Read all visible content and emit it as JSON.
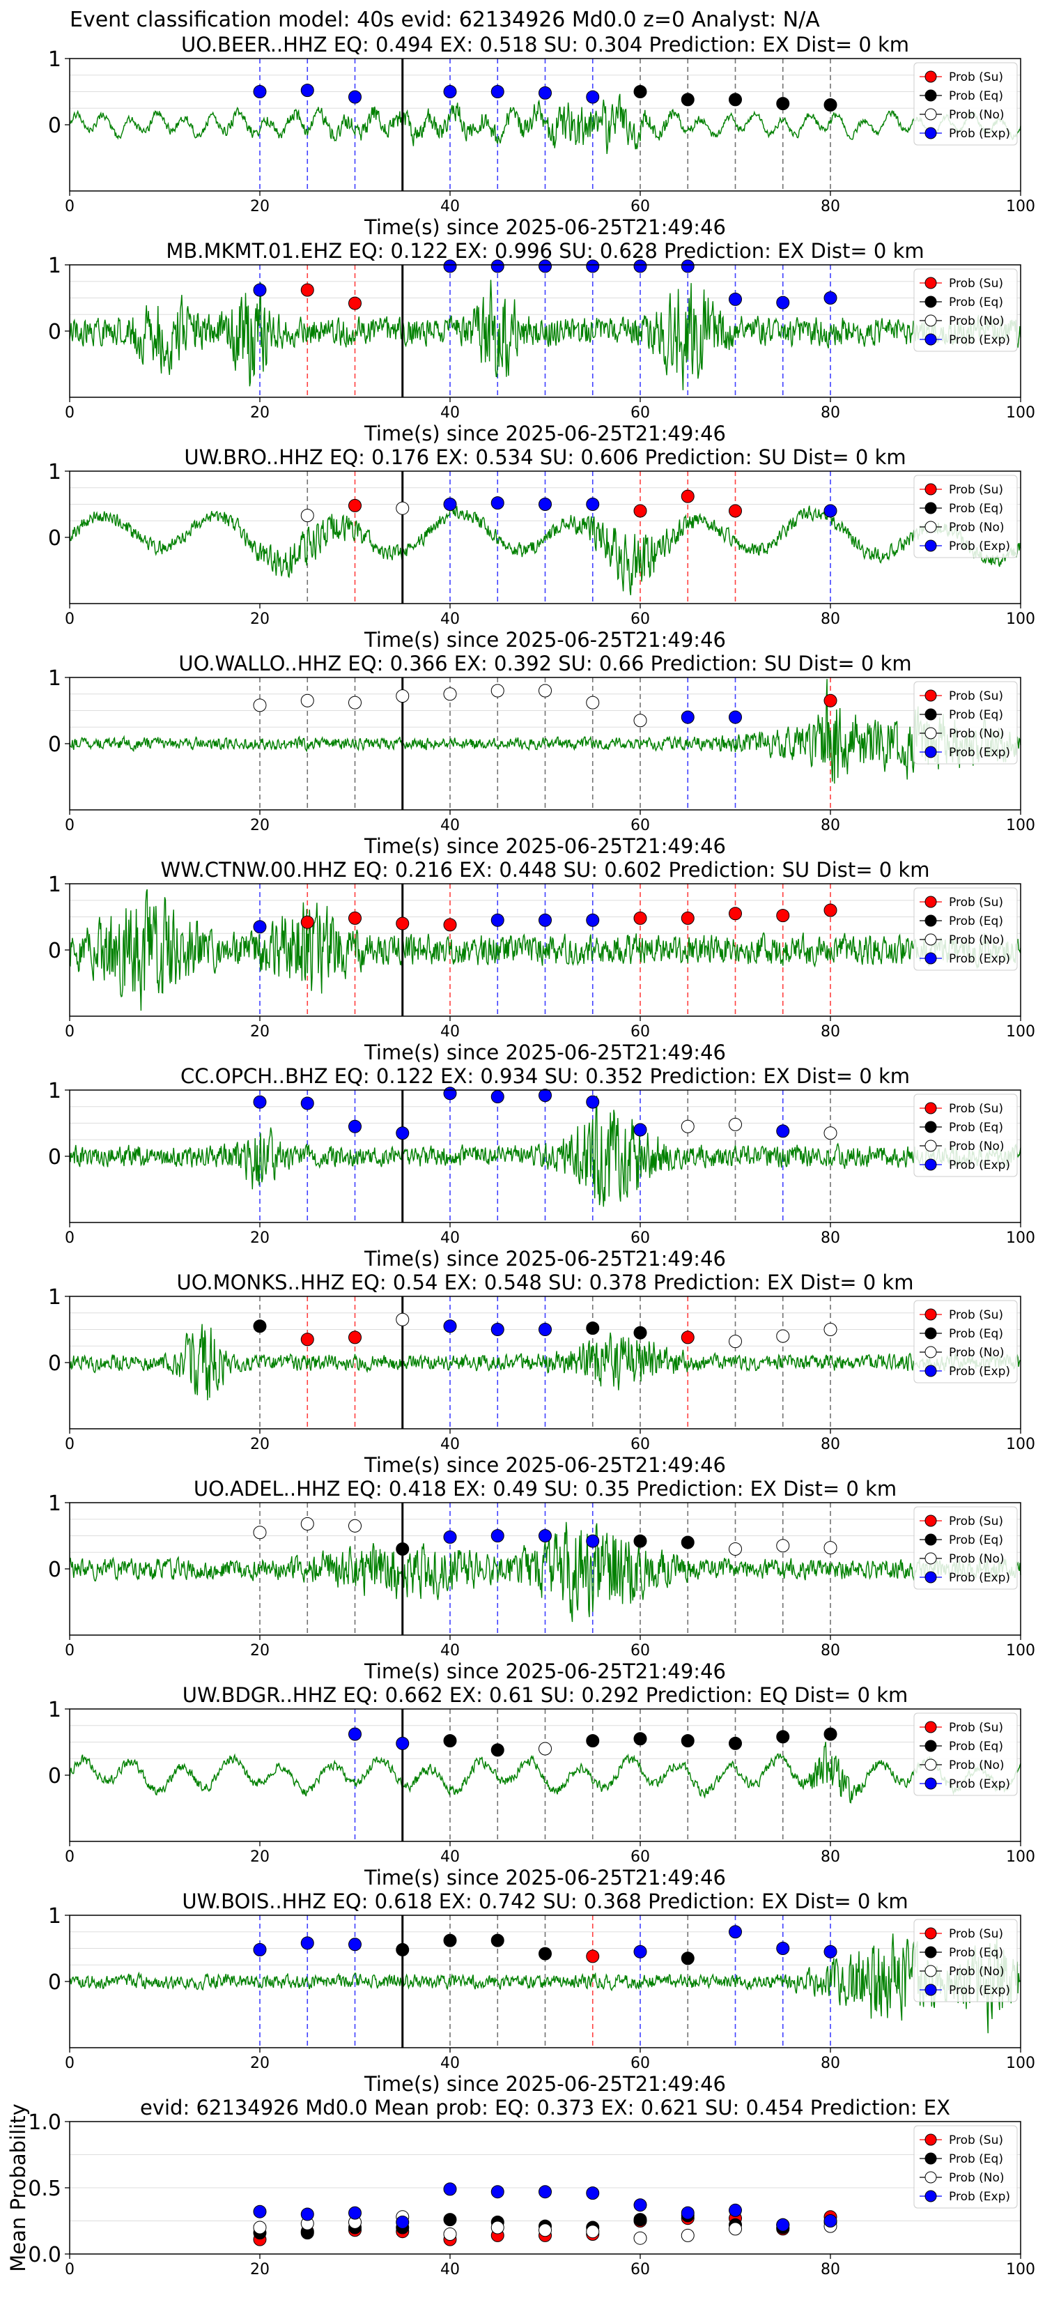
{
  "figure": {
    "title": "Event classification model: 40s evid: 62134926 Md0.0 z=0 Analyst: N/A",
    "xlabel": "Time(s) since 2025-06-25T21:49:46",
    "legend": [
      "Prob (Su)",
      "Prob (Eq)",
      "Prob (No)",
      "Prob (Exp)"
    ],
    "colors": {
      "su": "#ff0000",
      "eq": "#000000",
      "no": "#ffffff",
      "exp": "#0000ff",
      "waveform": "#008000",
      "grid": "#dddddd"
    },
    "xticks": [
      "0",
      "20",
      "40",
      "60",
      "80",
      "100"
    ],
    "yticks": [
      "0",
      "1"
    ],
    "mean_yticks": [
      "0.0",
      "0.5",
      "1.0"
    ],
    "mean_ylabel": "Mean Probability"
  },
  "chart_data": [
    {
      "type": "scatter",
      "title": "UO.BEER..HHZ   EQ: 0.494  EX: 0.518  SU: 0.304   Prediction: EX    Dist= 0 km",
      "xlim": [
        0,
        100
      ],
      "ylim": [
        -1,
        1
      ],
      "origin_time": 35,
      "points": [
        [
          20,
          0.5,
          "exp"
        ],
        [
          25,
          0.52,
          "exp"
        ],
        [
          30,
          0.42,
          "exp"
        ],
        [
          40,
          0.5,
          "exp"
        ],
        [
          45,
          0.5,
          "exp"
        ],
        [
          50,
          0.48,
          "exp"
        ],
        [
          55,
          0.42,
          "exp"
        ],
        [
          60,
          0.5,
          "eq"
        ],
        [
          65,
          0.38,
          "eq"
        ],
        [
          70,
          0.38,
          "eq"
        ],
        [
          75,
          0.32,
          "eq"
        ],
        [
          80,
          0.3,
          "eq"
        ]
      ],
      "wave": {
        "amp": 0.14,
        "seed": 11,
        "bursts": [
          [
            55,
            5,
            0.75
          ],
          [
            40,
            20,
            0.3
          ]
        ],
        "osc": 2.2
      }
    },
    {
      "type": "scatter",
      "title": "MB.MKMT.01.EHZ   EQ: 0.122  EX: 0.996  SU: 0.628   Prediction: EX    Dist= 0 km",
      "xlim": [
        0,
        100
      ],
      "ylim": [
        -1,
        1
      ],
      "origin_time": 35,
      "points": [
        [
          20,
          0.62,
          "exp"
        ],
        [
          25,
          0.62,
          "su"
        ],
        [
          30,
          0.42,
          "su"
        ],
        [
          40,
          0.98,
          "exp"
        ],
        [
          45,
          0.98,
          "exp"
        ],
        [
          50,
          0.98,
          "exp"
        ],
        [
          55,
          0.98,
          "exp"
        ],
        [
          60,
          0.98,
          "exp"
        ],
        [
          65,
          0.98,
          "exp"
        ],
        [
          70,
          0.48,
          "exp"
        ],
        [
          75,
          0.43,
          "exp"
        ],
        [
          80,
          0.5,
          "exp"
        ]
      ],
      "wave": {
        "amp": 0.28,
        "seed": 23,
        "bursts": [
          [
            19,
            2,
            0.8
          ],
          [
            45,
            2,
            0.8
          ],
          [
            65,
            3,
            0.8
          ],
          [
            10,
            3,
            0.5
          ]
        ],
        "osc": 0
      }
    },
    {
      "type": "scatter",
      "title": "UW.BRO..HHZ   EQ: 0.176  EX: 0.534  SU: 0.606   Prediction: SU    Dist= 0 km",
      "xlim": [
        0,
        100
      ],
      "ylim": [
        -1,
        1
      ],
      "origin_time": 35,
      "points": [
        [
          25,
          0.33,
          "no"
        ],
        [
          30,
          0.48,
          "su"
        ],
        [
          35,
          0.44,
          "no"
        ],
        [
          40,
          0.5,
          "exp"
        ],
        [
          45,
          0.52,
          "exp"
        ],
        [
          50,
          0.5,
          "exp"
        ],
        [
          55,
          0.5,
          "exp"
        ],
        [
          60,
          0.4,
          "su"
        ],
        [
          65,
          0.62,
          "su"
        ],
        [
          70,
          0.4,
          "su"
        ],
        [
          80,
          0.4,
          "exp"
        ]
      ],
      "wave": {
        "amp": 0.3,
        "seed": 37,
        "bursts": [
          [
            59,
            4,
            0.9
          ],
          [
            25,
            5,
            0.5
          ]
        ],
        "osc": 0.5
      }
    },
    {
      "type": "scatter",
      "title": "UO.WALLO..HHZ   EQ: 0.366  EX: 0.392  SU: 0.66   Prediction: SU    Dist= 0 km",
      "xlim": [
        0,
        100
      ],
      "ylim": [
        -1,
        1
      ],
      "origin_time": 35,
      "points": [
        [
          20,
          0.58,
          "no"
        ],
        [
          25,
          0.65,
          "no"
        ],
        [
          30,
          0.62,
          "no"
        ],
        [
          35,
          0.72,
          "no"
        ],
        [
          40,
          0.75,
          "no"
        ],
        [
          45,
          0.8,
          "no"
        ],
        [
          50,
          0.8,
          "no"
        ],
        [
          55,
          0.62,
          "no"
        ],
        [
          60,
          0.35,
          "no"
        ],
        [
          65,
          0.4,
          "exp"
        ],
        [
          70,
          0.4,
          "exp"
        ],
        [
          80,
          0.65,
          "su"
        ]
      ],
      "wave": {
        "amp": 0.12,
        "seed": 41,
        "bursts": [
          [
            88,
            12,
            0.55
          ],
          [
            80,
            1,
            0.9
          ]
        ],
        "osc": 0
      }
    },
    {
      "type": "scatter",
      "title": "WW.CTNW.00.HHZ   EQ: 0.216  EX: 0.448  SU: 0.602   Prediction: SU    Dist= 0 km",
      "xlim": [
        0,
        100
      ],
      "ylim": [
        -1,
        1
      ],
      "origin_time": 35,
      "points": [
        [
          20,
          0.35,
          "exp"
        ],
        [
          25,
          0.42,
          "su"
        ],
        [
          30,
          0.48,
          "su"
        ],
        [
          35,
          0.4,
          "su"
        ],
        [
          40,
          0.38,
          "su"
        ],
        [
          45,
          0.45,
          "exp"
        ],
        [
          50,
          0.45,
          "exp"
        ],
        [
          55,
          0.45,
          "exp"
        ],
        [
          60,
          0.48,
          "su"
        ],
        [
          65,
          0.48,
          "su"
        ],
        [
          70,
          0.55,
          "su"
        ],
        [
          75,
          0.52,
          "su"
        ],
        [
          80,
          0.6,
          "su"
        ]
      ],
      "wave": {
        "amp": 0.3,
        "seed": 53,
        "bursts": [
          [
            8,
            5,
            0.85
          ],
          [
            25,
            4,
            0.7
          ]
        ],
        "osc": 0
      }
    },
    {
      "type": "scatter",
      "title": "CC.OPCH..BHZ   EQ: 0.122  EX: 0.934  SU: 0.352   Prediction: EX    Dist= 0 km",
      "xlim": [
        0,
        100
      ],
      "ylim": [
        -1,
        1
      ],
      "origin_time": 35,
      "points": [
        [
          20,
          0.82,
          "exp"
        ],
        [
          25,
          0.8,
          "exp"
        ],
        [
          30,
          0.45,
          "exp"
        ],
        [
          35,
          0.35,
          "exp"
        ],
        [
          40,
          0.95,
          "exp"
        ],
        [
          45,
          0.9,
          "exp"
        ],
        [
          50,
          0.92,
          "exp"
        ],
        [
          55,
          0.82,
          "exp"
        ],
        [
          60,
          0.4,
          "exp"
        ],
        [
          65,
          0.45,
          "no"
        ],
        [
          70,
          0.48,
          "no"
        ],
        [
          75,
          0.38,
          "exp"
        ],
        [
          80,
          0.35,
          "no"
        ]
      ],
      "wave": {
        "amp": 0.22,
        "seed": 67,
        "bursts": [
          [
            57,
            4,
            0.95
          ],
          [
            20,
            2,
            0.5
          ]
        ],
        "osc": 0
      }
    },
    {
      "type": "scatter",
      "title": "UO.MONKS..HHZ   EQ: 0.54  EX: 0.548  SU: 0.378   Prediction: EX    Dist= 0 km",
      "xlim": [
        0,
        100
      ],
      "ylim": [
        -1,
        1
      ],
      "origin_time": 35,
      "points": [
        [
          20,
          0.55,
          "eq"
        ],
        [
          25,
          0.35,
          "su"
        ],
        [
          30,
          0.38,
          "su"
        ],
        [
          35,
          0.65,
          "no"
        ],
        [
          40,
          0.55,
          "exp"
        ],
        [
          45,
          0.5,
          "exp"
        ],
        [
          50,
          0.5,
          "exp"
        ],
        [
          55,
          0.52,
          "eq"
        ],
        [
          60,
          0.45,
          "eq"
        ],
        [
          65,
          0.38,
          "su"
        ],
        [
          70,
          0.32,
          "no"
        ],
        [
          75,
          0.4,
          "no"
        ],
        [
          80,
          0.5,
          "no"
        ]
      ],
      "wave": {
        "amp": 0.16,
        "seed": 71,
        "bursts": [
          [
            14,
            2,
            0.8
          ],
          [
            58,
            5,
            0.45
          ]
        ],
        "osc": 0
      }
    },
    {
      "type": "scatter",
      "title": "UO.ADEL..HHZ   EQ: 0.418  EX: 0.49  SU: 0.35   Prediction: EX    Dist= 0 km",
      "xlim": [
        0,
        100
      ],
      "ylim": [
        -1,
        1
      ],
      "origin_time": 35,
      "points": [
        [
          20,
          0.55,
          "no"
        ],
        [
          25,
          0.68,
          "no"
        ],
        [
          30,
          0.65,
          "no"
        ],
        [
          35,
          0.3,
          "eq"
        ],
        [
          40,
          0.48,
          "exp"
        ],
        [
          45,
          0.5,
          "exp"
        ],
        [
          50,
          0.5,
          "exp"
        ],
        [
          55,
          0.42,
          "exp"
        ],
        [
          60,
          0.42,
          "eq"
        ],
        [
          65,
          0.4,
          "eq"
        ],
        [
          70,
          0.3,
          "no"
        ],
        [
          75,
          0.35,
          "no"
        ],
        [
          80,
          0.32,
          "no"
        ]
      ],
      "wave": {
        "amp": 0.2,
        "seed": 83,
        "bursts": [
          [
            55,
            6,
            0.85
          ],
          [
            35,
            8,
            0.4
          ]
        ],
        "osc": 0
      }
    },
    {
      "type": "scatter",
      "title": "UW.BDGR..HHZ   EQ: 0.662  EX: 0.61  SU: 0.292   Prediction: EQ    Dist= 0 km",
      "xlim": [
        0,
        100
      ],
      "ylim": [
        -1,
        1
      ],
      "origin_time": 35,
      "points": [
        [
          30,
          0.62,
          "exp"
        ],
        [
          35,
          0.48,
          "exp"
        ],
        [
          40,
          0.52,
          "eq"
        ],
        [
          45,
          0.38,
          "eq"
        ],
        [
          50,
          0.4,
          "no"
        ],
        [
          55,
          0.52,
          "eq"
        ],
        [
          60,
          0.55,
          "eq"
        ],
        [
          65,
          0.52,
          "eq"
        ],
        [
          70,
          0.48,
          "eq"
        ],
        [
          75,
          0.58,
          "eq"
        ],
        [
          80,
          0.62,
          "eq"
        ]
      ],
      "wave": {
        "amp": 0.2,
        "seed": 97,
        "bursts": [
          [
            80,
            2,
            0.8
          ]
        ],
        "osc": 1.2
      }
    },
    {
      "type": "scatter",
      "title": "UW.BOIS..HHZ   EQ: 0.618  EX: 0.742  SU: 0.368   Prediction: EX    Dist= 0 km",
      "xlim": [
        0,
        100
      ],
      "ylim": [
        -1,
        1
      ],
      "origin_time": 35,
      "points": [
        [
          20,
          0.48,
          "exp"
        ],
        [
          25,
          0.58,
          "exp"
        ],
        [
          30,
          0.56,
          "exp"
        ],
        [
          35,
          0.48,
          "eq"
        ],
        [
          40,
          0.62,
          "eq"
        ],
        [
          45,
          0.62,
          "eq"
        ],
        [
          50,
          0.42,
          "eq"
        ],
        [
          55,
          0.38,
          "su"
        ],
        [
          60,
          0.45,
          "exp"
        ],
        [
          65,
          0.35,
          "eq"
        ],
        [
          70,
          0.75,
          "exp"
        ],
        [
          75,
          0.5,
          "exp"
        ],
        [
          80,
          0.45,
          "exp"
        ]
      ],
      "wave": {
        "amp": 0.14,
        "seed": 109,
        "bursts": [
          [
            86,
            6,
            0.7
          ],
          [
            97,
            3,
            0.8
          ]
        ],
        "osc": 0
      }
    },
    {
      "type": "scatter",
      "title": "evid: 62134926  Md0.0   Mean prob:   EQ: 0.373  EX: 0.621  SU: 0.454   Prediction: EX",
      "xlim": [
        0,
        100
      ],
      "ylim": [
        0,
        1
      ],
      "ylabel": "Mean Probability",
      "mean": true,
      "series": [
        {
          "name": "Prob (Su)",
          "key": "su",
          "x": [
            20,
            25,
            30,
            35,
            40,
            45,
            50,
            55,
            60,
            65,
            70,
            75,
            80
          ],
          "y": [
            0.11,
            0.17,
            0.18,
            0.17,
            0.11,
            0.14,
            0.14,
            0.15,
            0.25,
            0.27,
            0.27,
            0.19,
            0.28
          ]
        },
        {
          "name": "Prob (Eq)",
          "key": "eq",
          "x": [
            20,
            25,
            30,
            35,
            40,
            45,
            50,
            55,
            60,
            65,
            70,
            75,
            80
          ],
          "y": [
            0.16,
            0.16,
            0.2,
            0.2,
            0.26,
            0.24,
            0.21,
            0.2,
            0.26,
            0.29,
            0.22,
            0.2,
            0.24
          ]
        },
        {
          "name": "Prob (No)",
          "key": "no",
          "x": [
            20,
            25,
            30,
            35,
            40,
            45,
            50,
            55,
            60,
            65,
            70,
            75,
            80
          ],
          "y": [
            0.2,
            0.23,
            0.24,
            0.28,
            0.15,
            0.2,
            0.18,
            0.17,
            0.12,
            0.14,
            0.19,
            0.22,
            0.21
          ]
        },
        {
          "name": "Prob (Exp)",
          "key": "exp",
          "x": [
            20,
            25,
            30,
            35,
            40,
            45,
            50,
            55,
            60,
            65,
            70,
            75,
            80
          ],
          "y": [
            0.32,
            0.3,
            0.31,
            0.24,
            0.49,
            0.47,
            0.47,
            0.46,
            0.37,
            0.31,
            0.33,
            0.22,
            0.25
          ]
        }
      ]
    }
  ]
}
